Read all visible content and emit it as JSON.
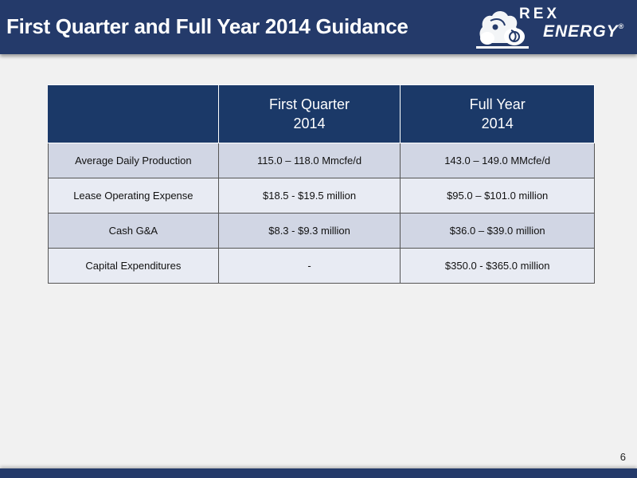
{
  "header": {
    "title": "First Quarter and Full Year 2014 Guidance",
    "logo": {
      "line1": "REX",
      "line2": "ENERGY",
      "reg": "®"
    }
  },
  "table": {
    "columns": [
      {
        "line1": "",
        "line2": ""
      },
      {
        "line1": "First Quarter",
        "line2": "2014"
      },
      {
        "line1": "Full Year",
        "line2": "2014"
      }
    ],
    "rows": [
      {
        "label": "Average Daily Production",
        "q1": "115.0 – 118.0 Mmcfe/d",
        "fy": "143.0 – 149.0 MMcfe/d"
      },
      {
        "label": "Lease Operating Expense",
        "q1": "$18.5 - $19.5 million",
        "fy": "$95.0 – $101.0 million"
      },
      {
        "label": "Cash G&A",
        "q1": "$8.3 - $9.3 million",
        "fy": "$36.0 – $39.0 million"
      },
      {
        "label": "Capital Expenditures",
        "q1": "-",
        "fy": "$350.0 - $365.0 million"
      }
    ]
  },
  "footer": {
    "page_number": "6"
  },
  "colors": {
    "header_bg": "#243a6a",
    "table_header_bg": "#1b3968",
    "row_odd": "#d1d6e4",
    "row_even": "#e8ebf3"
  }
}
